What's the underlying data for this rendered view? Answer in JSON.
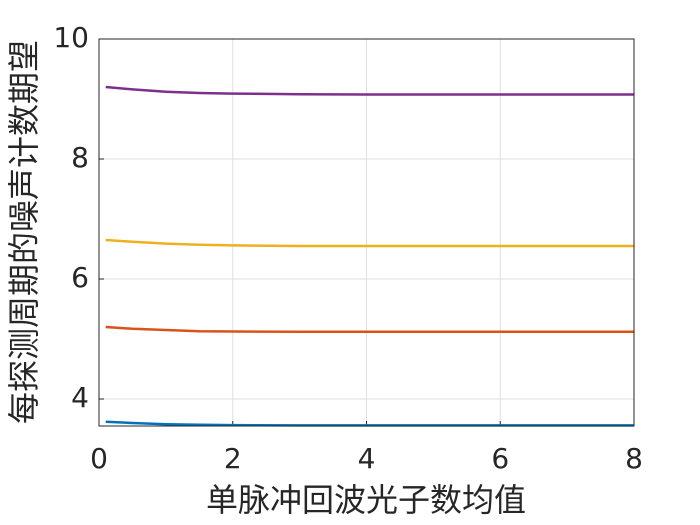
{
  "chart_data": {
    "type": "line",
    "xlabel": "单脉冲回波光子数均值",
    "ylabel": "每探测周期的噪声计数期望",
    "x": [
      0.1,
      0.5,
      1,
      1.5,
      2,
      3,
      4,
      5,
      6,
      7,
      8
    ],
    "series": [
      {
        "color": "#0072bd",
        "values": [
          3.62,
          3.6,
          3.58,
          3.57,
          3.565,
          3.56,
          3.56,
          3.56,
          3.56,
          3.56,
          3.56
        ]
      },
      {
        "color": "#d95319",
        "values": [
          5.2,
          5.17,
          5.15,
          5.13,
          5.125,
          5.12,
          5.12,
          5.12,
          5.12,
          5.12,
          5.12
        ]
      },
      {
        "color": "#edb120",
        "values": [
          6.65,
          6.62,
          6.59,
          6.57,
          6.56,
          6.55,
          6.55,
          6.55,
          6.55,
          6.55,
          6.55
        ]
      },
      {
        "color": "#7e2f8e",
        "values": [
          9.2,
          9.16,
          9.12,
          9.1,
          9.09,
          9.08,
          9.075,
          9.075,
          9.075,
          9.075,
          9.075
        ]
      }
    ],
    "xlim": [
      0,
      8
    ],
    "xticks": [
      0,
      2,
      4,
      6,
      8
    ],
    "ylim": [
      3.55,
      10
    ],
    "yticks": [
      4,
      6,
      8,
      10
    ],
    "grid": true
  }
}
